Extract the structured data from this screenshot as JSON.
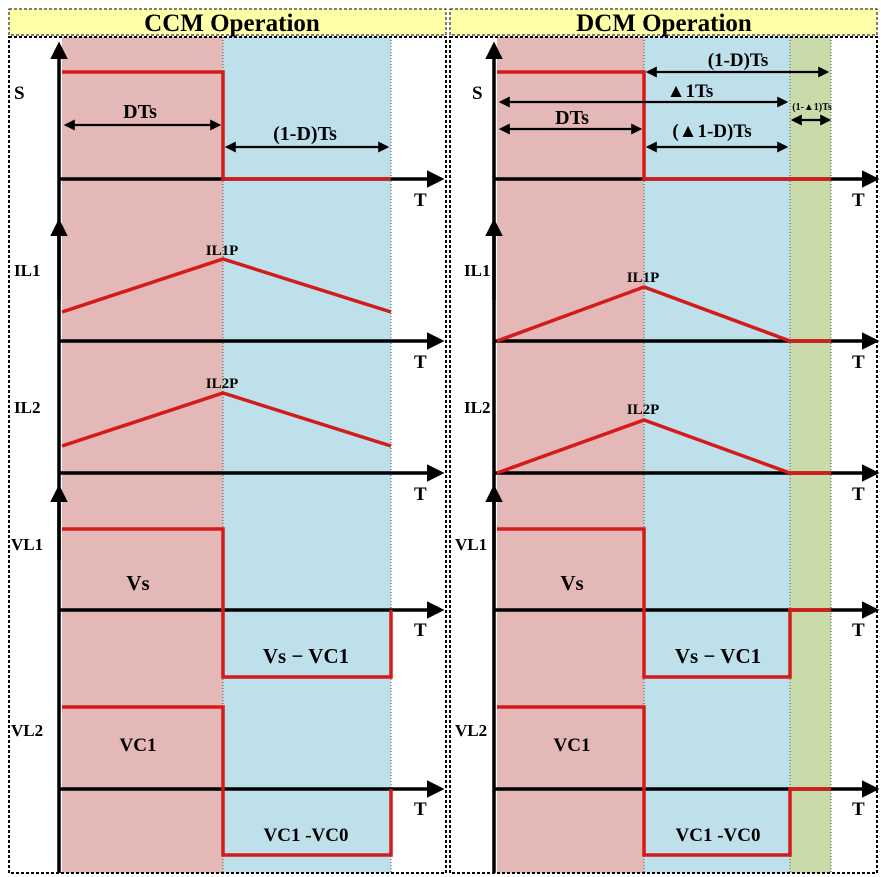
{
  "titles": {
    "ccm": "CCM Operation",
    "dcm": "DCM Operation"
  },
  "colors": {
    "on_phase": "#e4b8b7",
    "off_phase": "#bde0ea",
    "idle_phase": "#c9dba9",
    "title_bar": "#ffffa7",
    "waveform": "#d51a1a",
    "axis": "#000000"
  },
  "axis_labels": {
    "switch": "S",
    "il1": "IL1",
    "il2": "IL2",
    "vl1": "VL1",
    "vl2": "VL2",
    "time": "T"
  },
  "ccm": {
    "dts": "DTs",
    "off_time": "(1-D)Ts",
    "il1_peak": "IL1P",
    "il2_peak": "IL2P",
    "vl1_on": "Vs",
    "vl1_off": "Vs − VC1",
    "vl2_on": "VC1",
    "vl2_off": "VC1 -VC0"
  },
  "dcm": {
    "off_time": "(1-D)Ts",
    "delta1_ts": "▲1Ts",
    "idle_time": "(1-▲1)Ts",
    "dts": "DTs",
    "delta1_minus_d": "(▲1-D)Ts",
    "il1_peak": "IL1P",
    "il2_peak": "IL2P",
    "vl1_on": "Vs",
    "vl1_off": "Vs − VC1",
    "vl2_on": "VC1",
    "vl2_off": "VC1 -VC0"
  }
}
